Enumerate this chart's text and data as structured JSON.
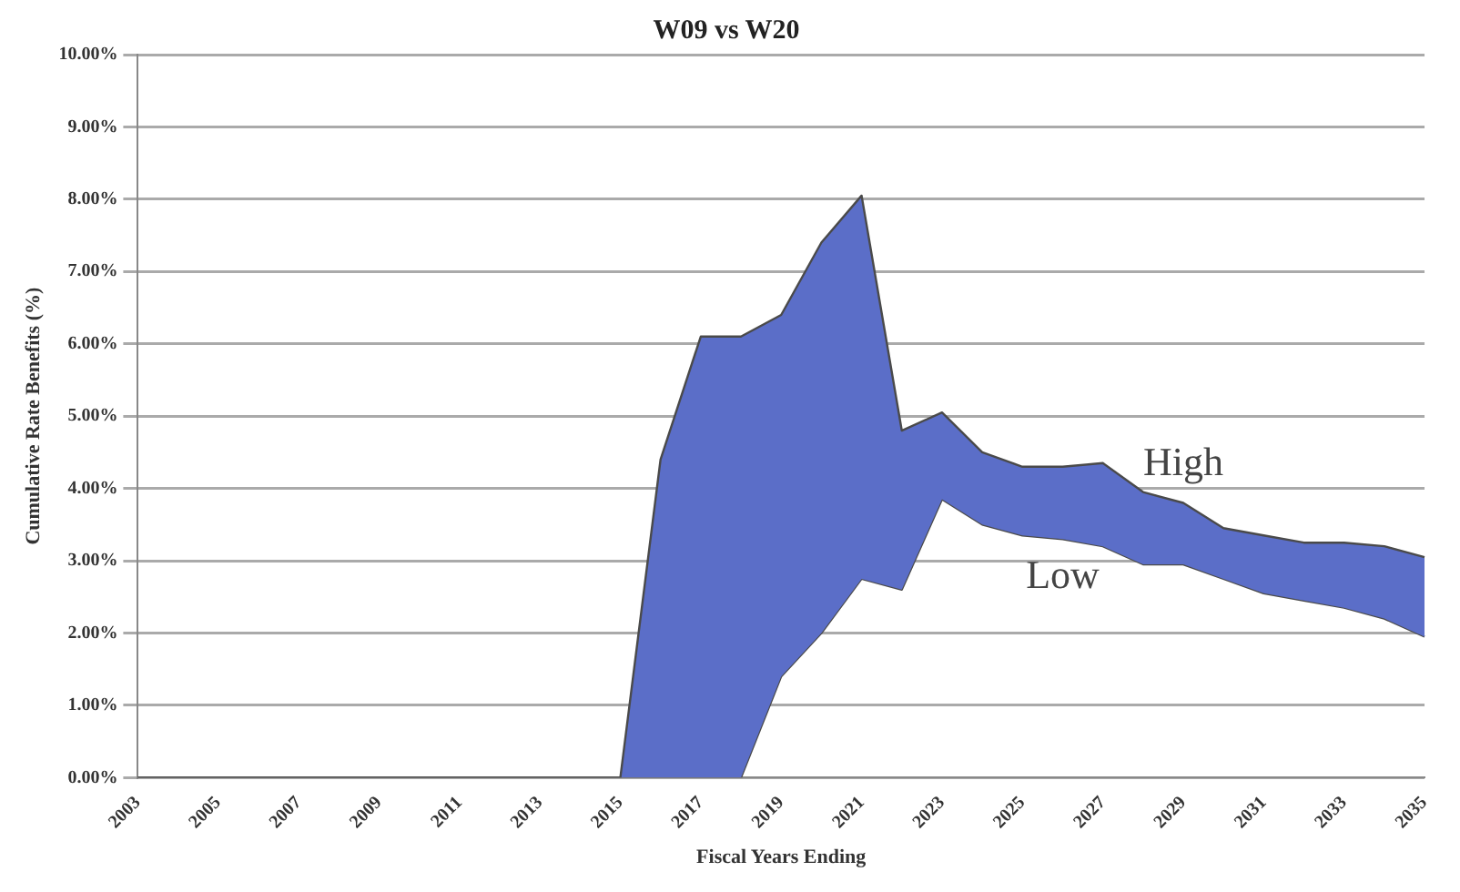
{
  "chart_data": {
    "type": "area",
    "title": "W09 vs W20",
    "xlabel": "Fiscal Years Ending",
    "ylabel": "Cumulative Rate Benefits (%)",
    "categories": [
      "2003",
      null,
      "2005",
      null,
      "2007",
      null,
      "2009",
      null,
      "2011",
      null,
      "2013",
      null,
      "2015",
      null,
      "2017",
      null,
      "2019",
      null,
      "2021",
      null,
      "2023",
      null,
      "2025",
      null,
      "2027",
      null,
      "2029",
      null,
      "2031",
      null,
      "2033",
      null,
      "2035"
    ],
    "series": [
      {
        "name": "High",
        "color": "#5b6ec8",
        "values": [
          0,
          0,
          0,
          0,
          0,
          0,
          0,
          0,
          0,
          0,
          0,
          0,
          0,
          4.4,
          6.1,
          6.1,
          6.4,
          7.4,
          8.05,
          4.8,
          5.05,
          4.5,
          4.3,
          4.3,
          4.35,
          3.95,
          3.8,
          3.45,
          3.35,
          3.25,
          3.25,
          3.2,
          3.05
        ]
      },
      {
        "name": "Low",
        "type": "line",
        "color": "#4a4a4a",
        "values": [
          0,
          0,
          0,
          0,
          0,
          0,
          0,
          0,
          0,
          0,
          0,
          0,
          0,
          0,
          0,
          0,
          1.4,
          2.0,
          2.75,
          2.6,
          3.85,
          3.5,
          3.35,
          3.3,
          3.2,
          2.95,
          2.95,
          2.75,
          2.55,
          2.45,
          2.35,
          2.2,
          1.95
        ]
      }
    ],
    "ylim": [
      0,
      10
    ],
    "yticks": [
      {
        "value": 0,
        "label": "0.00%"
      },
      {
        "value": 1,
        "label": "1.00%"
      },
      {
        "value": 2,
        "label": "2.00%"
      },
      {
        "value": 3,
        "label": "3.00%"
      },
      {
        "value": 4,
        "label": "4.00%"
      },
      {
        "value": 5,
        "label": "5.00%"
      },
      {
        "value": 6,
        "label": "6.00%"
      },
      {
        "value": 7,
        "label": "7.00%"
      },
      {
        "value": 8,
        "label": "8.00%"
      },
      {
        "value": 9,
        "label": "9.00%"
      },
      {
        "value": 10,
        "label": "10.00%"
      }
    ],
    "grid": "y",
    "legend": false,
    "marker": "none",
    "line_style": "solid"
  }
}
